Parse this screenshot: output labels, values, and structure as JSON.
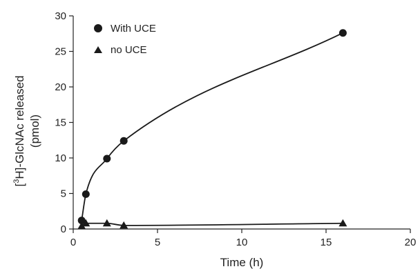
{
  "chart_data": {
    "type": "line",
    "title": "",
    "xlabel": "Time (h)",
    "ylabel": {
      "line1_pre": "[",
      "line1_sup": "3",
      "line1_post": "H]-GlcNAc released",
      "line2": "(pmol)"
    },
    "xlim": [
      0,
      20
    ],
    "ylim": [
      0,
      30
    ],
    "xticks": [
      "0",
      "5",
      "10",
      "15",
      "20"
    ],
    "yticks": [
      "0",
      "5",
      "10",
      "15",
      "20",
      "25",
      "30"
    ],
    "grid": false,
    "legend_position": "top-left",
    "series": [
      {
        "name": "With UCE",
        "marker": "circle",
        "color": "#1a1a1a",
        "x": [
          0.5,
          0.75,
          2,
          3,
          16
        ],
        "y": [
          1.2,
          4.9,
          9.9,
          12.4,
          27.6
        ]
      },
      {
        "name": "no UCE",
        "marker": "triangle",
        "color": "#1a1a1a",
        "x": [
          0.5,
          0.75,
          2,
          3,
          16
        ],
        "y": [
          0.4,
          0.8,
          0.8,
          0.5,
          0.8
        ]
      }
    ]
  }
}
